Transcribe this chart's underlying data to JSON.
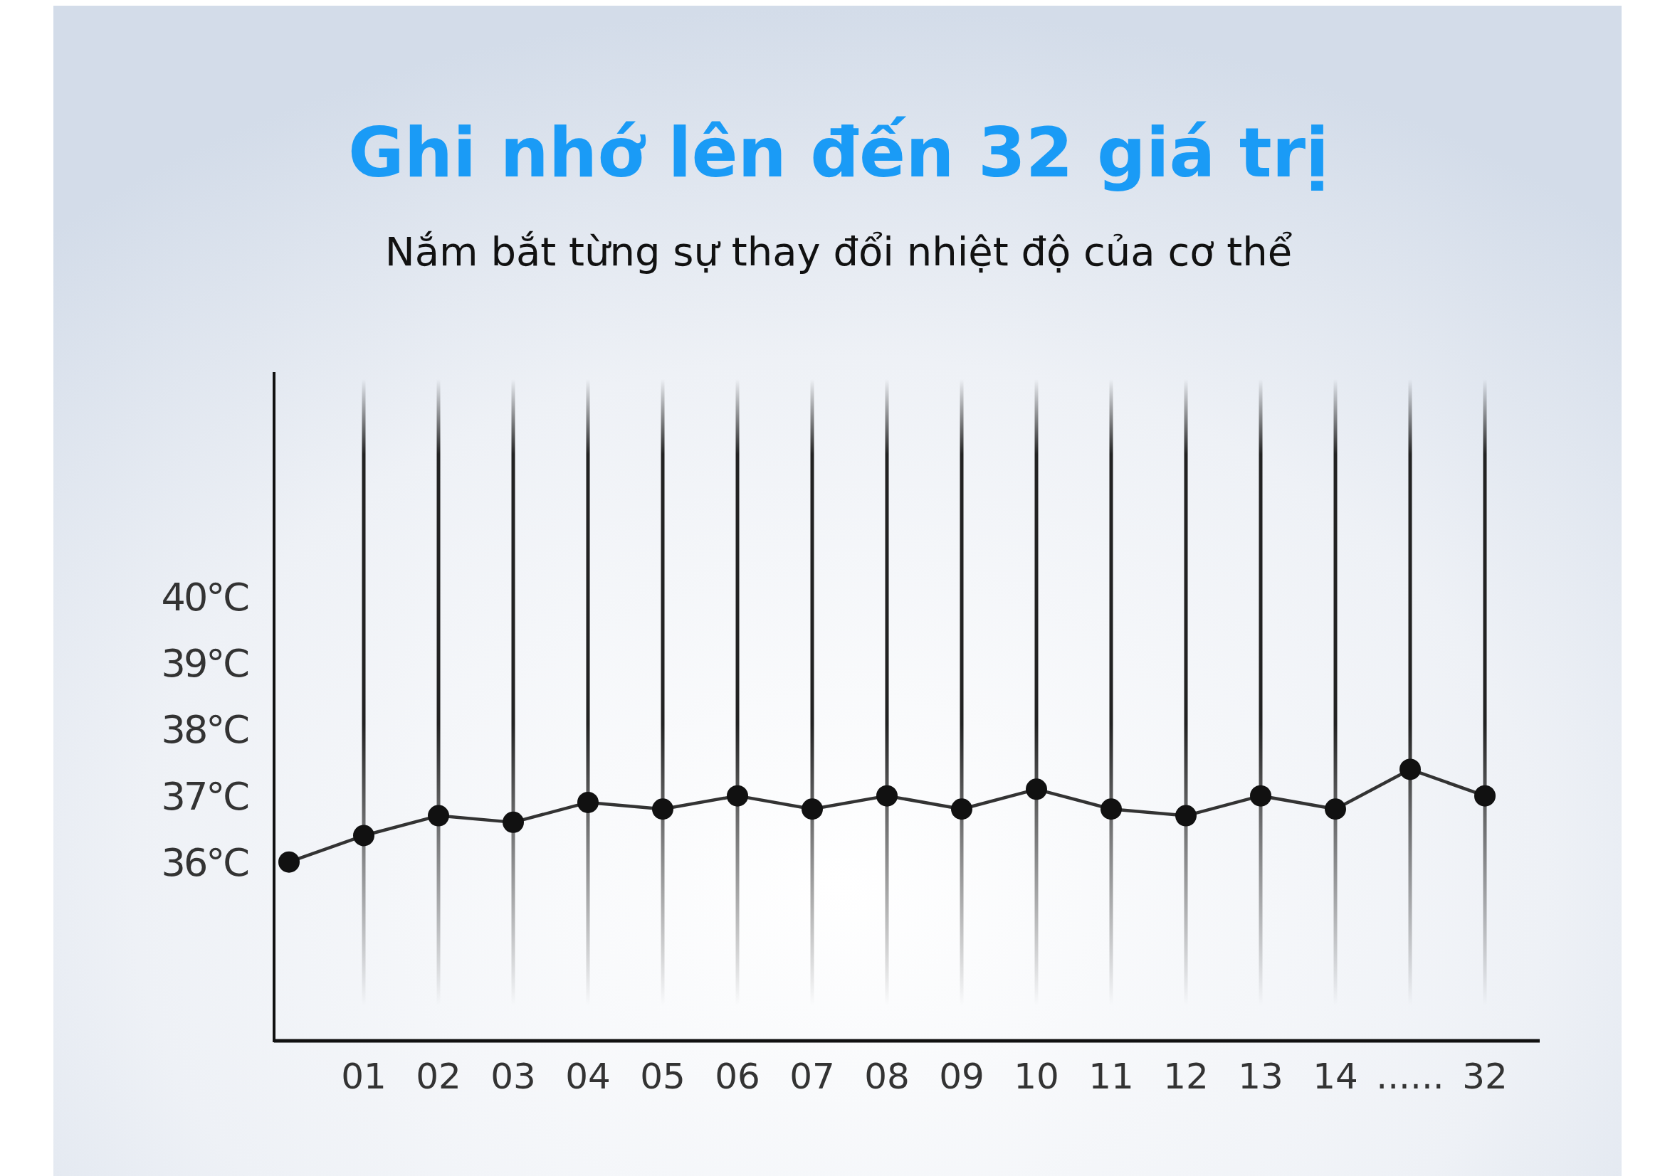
{
  "chart_data": {
    "type": "line",
    "title": "Ghi nhớ lên đến 32 giá trị",
    "subtitle": "Nắm bắt từng sự thay đổi nhiệt độ của cơ thể",
    "categories": [
      null,
      "01",
      "02",
      "03",
      "04",
      "05",
      "06",
      "07",
      "08",
      "09",
      "10",
      "11",
      "12",
      "13",
      "14",
      "......",
      "32"
    ],
    "series": [
      {
        "color": "#333333",
        "values": [
          36.0,
          36.4,
          36.7,
          36.6,
          36.9,
          36.8,
          37.0,
          36.8,
          37.0,
          36.8,
          37.1,
          36.8,
          36.7,
          37.0,
          36.8,
          37.4,
          37.0
        ]
      }
    ],
    "ylim": [
      33.3,
      43.4
    ],
    "yticks": [
      {
        "value": 36,
        "label": "36°C"
      },
      {
        "value": 37,
        "label": "37°C"
      },
      {
        "value": 38,
        "label": "38°C"
      },
      {
        "value": 39,
        "label": "39°C"
      },
      {
        "value": 40,
        "label": "40°C"
      }
    ],
    "grid": "x",
    "marker": "circle",
    "line_style": "solid"
  }
}
